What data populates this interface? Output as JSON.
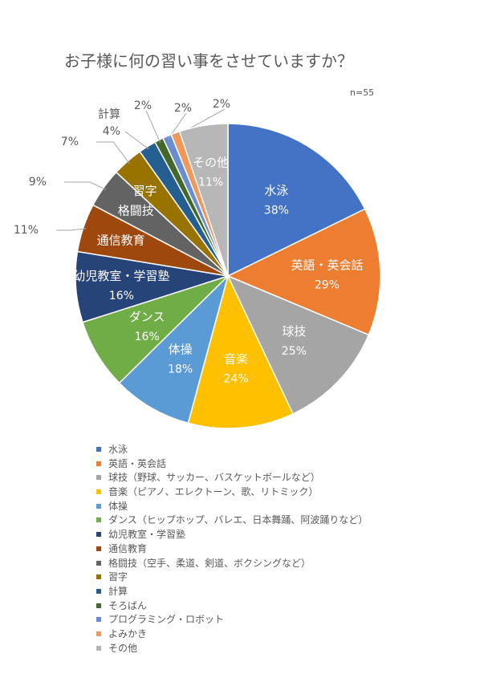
{
  "chart_data": {
    "type": "pie",
    "title": "お子様に何の習い事をさせていますか？",
    "note": "n=55",
    "slices": [
      {
        "label": "水泳",
        "legend": "水泳",
        "percent": 38,
        "percent_label": "38%",
        "color": "#4472C4"
      },
      {
        "label": "英語・英会話",
        "legend": "英語・英会話",
        "percent": 29,
        "percent_label": "29%",
        "color": "#ED7D31"
      },
      {
        "label": "球技",
        "legend": "球技（野球、サッカー、バスケットボールなど）",
        "percent": 25,
        "percent_label": "25%",
        "color": "#A5A5A5"
      },
      {
        "label": "音楽",
        "legend": "音楽（ピアノ、エレクトーン、歌、リトミック）",
        "percent": 24,
        "percent_label": "24%",
        "color": "#FFC000"
      },
      {
        "label": "体操",
        "legend": "体操",
        "percent": 18,
        "percent_label": "18%",
        "color": "#5B9BD5"
      },
      {
        "label": "ダンス",
        "legend": "ダンス（ヒップホップ、バレエ、日本舞踊、阿波踊りなど）",
        "percent": 16,
        "percent_label": "16%",
        "color": "#70AD47"
      },
      {
        "label": "幼児教室・学習塾",
        "legend": "幼児教室・学習塾",
        "percent": 16,
        "percent_label": "16%",
        "color": "#264478"
      },
      {
        "label": "通信教育",
        "legend": "通信教育",
        "percent": 11,
        "percent_label": "11%",
        "color": "#9E480E"
      },
      {
        "label": "格闘技",
        "legend": "格闘技（空手、柔道、剣道、ボクシングなど）",
        "percent": 9,
        "percent_label": "9%",
        "color": "#636363"
      },
      {
        "label": "習字",
        "legend": "習字",
        "percent": 7,
        "percent_label": "7%",
        "color": "#997300"
      },
      {
        "label": "計算",
        "legend": "計算",
        "percent": 4,
        "percent_label": "4%",
        "color": "#255E91"
      },
      {
        "label": "",
        "legend": "そろばん",
        "percent": 2,
        "percent_label": "2%",
        "color": "#43682B"
      },
      {
        "label": "",
        "legend": "プログラミング・ロボット",
        "percent": 2,
        "percent_label": "2%",
        "color": "#698ED0"
      },
      {
        "label": "",
        "legend": "よみかき",
        "percent": 2,
        "percent_label": "2%",
        "color": "#F1975A"
      },
      {
        "label": "その他",
        "legend": "その他",
        "percent": 11,
        "percent_label": "11%",
        "color": "#B7B7B7"
      }
    ]
  }
}
